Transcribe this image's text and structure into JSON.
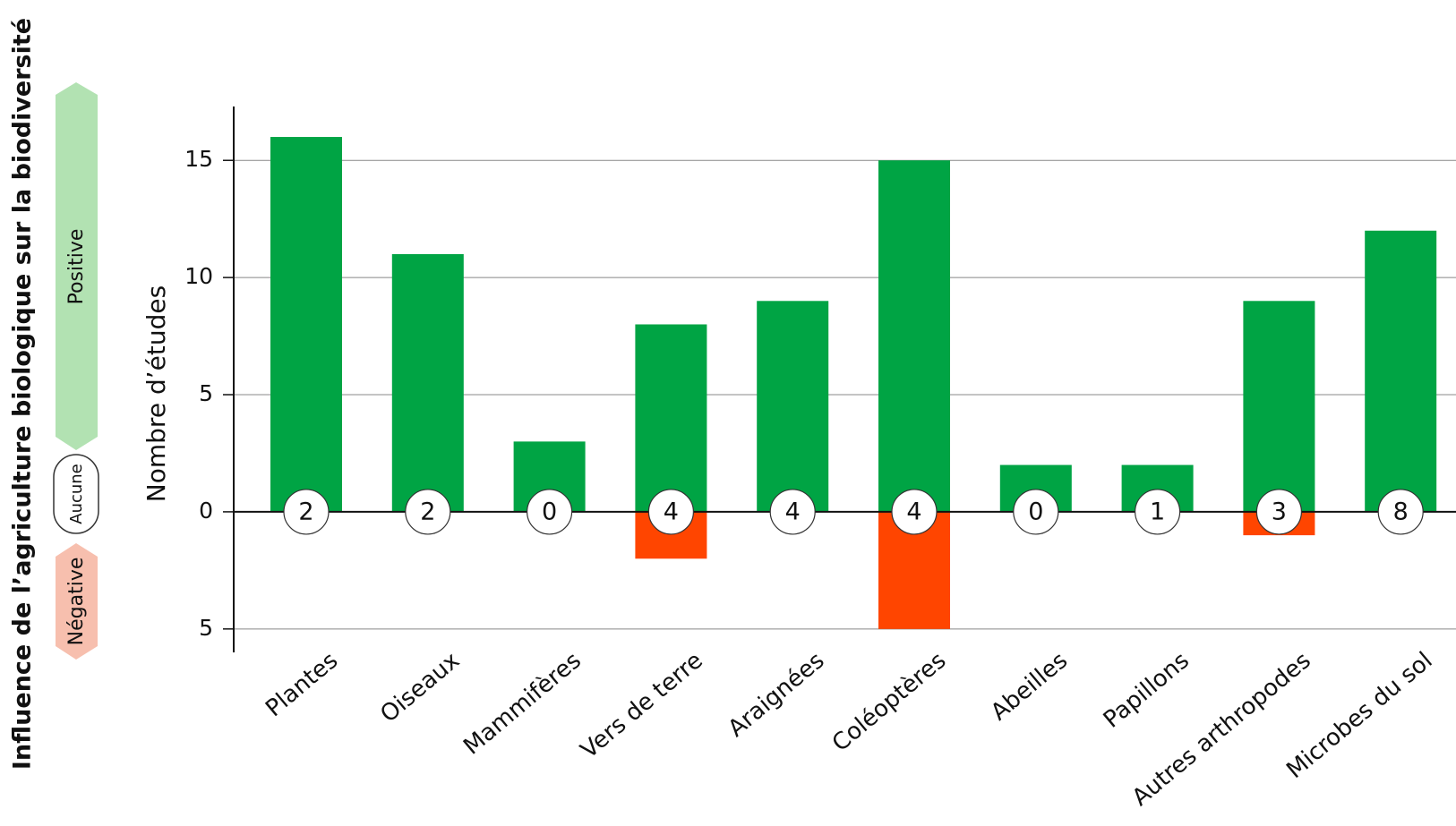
{
  "chart_data": {
    "type": "bar",
    "title": "Influence de l’agriculture biologique sur la biodiversité",
    "y_label": "Nombre d’études",
    "categories": [
      "Plantes",
      "Oiseaux",
      "Mammifères",
      "Vers de terre",
      "Araignées",
      "Coléoptères",
      "Abeilles",
      "Papillons",
      "Autres arthropodes",
      "Microbes du sol"
    ],
    "series": [
      {
        "name": "Positive",
        "color": "#00a444",
        "values": [
          16,
          11,
          3,
          8,
          9,
          15,
          2,
          2,
          9,
          12
        ]
      },
      {
        "name": "Négative",
        "color": "#ff4500",
        "values": [
          0,
          0,
          0,
          -2,
          0,
          -5,
          0,
          0,
          -1,
          0
        ]
      },
      {
        "name": "Aucune",
        "color": "#ffffff",
        "values": [
          2,
          2,
          0,
          4,
          4,
          4,
          0,
          1,
          3,
          8
        ]
      }
    ],
    "ylim": [
      -6,
      17.3
    ],
    "yticks": [
      {
        "value": -5,
        "label": "5"
      },
      0,
      5,
      10,
      15
    ],
    "grid": true
  }
}
